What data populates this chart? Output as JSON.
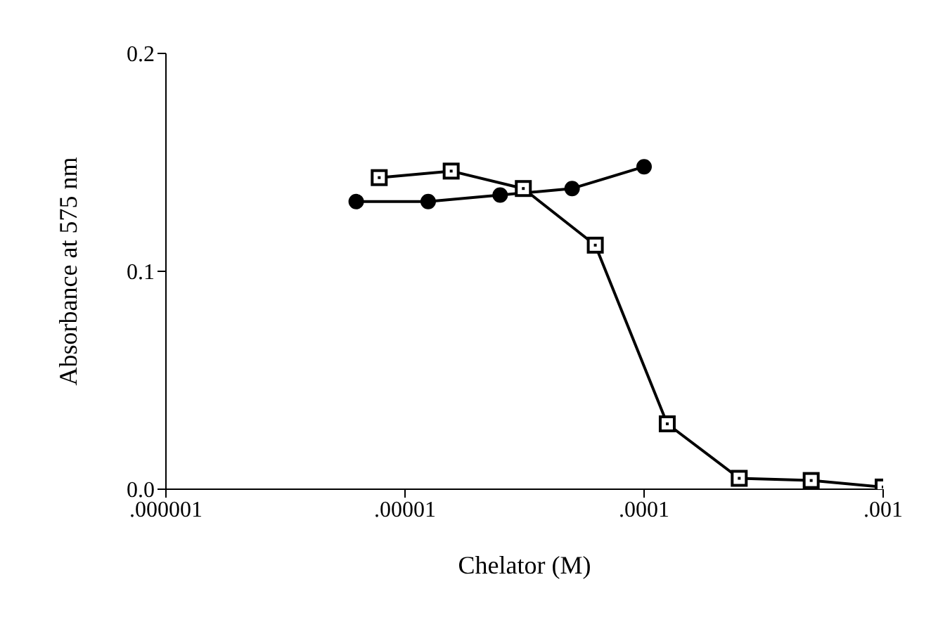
{
  "chart_data": {
    "type": "line",
    "xlabel": "Chelator (M)",
    "ylabel": "Absorbance at 575 nm",
    "log": "x",
    "grid": false,
    "legend": false,
    "xlim": [
      1e-06,
      0.001
    ],
    "xticks": [
      {
        "value": 1e-06,
        "label": ".000001"
      },
      {
        "value": 1e-05,
        "label": ".00001"
      },
      {
        "value": 0.0001,
        "label": ".0001"
      },
      {
        "value": 0.001,
        "label": ".001"
      }
    ],
    "ylim": [
      0,
      0.2
    ],
    "yticks": [
      {
        "value": 0,
        "label": "0.0"
      },
      {
        "value": 0.1,
        "label": "0.1"
      },
      {
        "value": 0.2,
        "label": "0.2"
      }
    ],
    "series": [
      {
        "color": "#000000",
        "marker": "circle",
        "x": [
          6.25e-06,
          1.25e-05,
          2.5e-05,
          5e-05,
          0.0001
        ],
        "values": [
          0.132,
          0.132,
          0.135,
          0.138,
          0.148
        ]
      },
      {
        "color": "#000000",
        "marker": "square",
        "x": [
          7.8e-06,
          1.56e-05,
          3.125e-05,
          6.25e-05,
          0.000125,
          0.00025,
          0.0005,
          0.001
        ],
        "values": [
          0.143,
          0.146,
          0.138,
          0.112,
          0.03,
          0.005,
          0.004,
          0.001
        ]
      }
    ]
  }
}
